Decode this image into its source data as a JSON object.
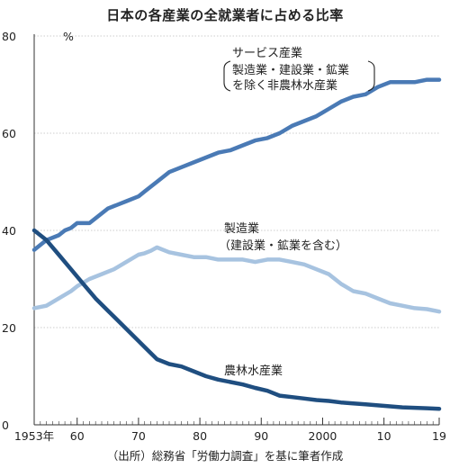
{
  "chart_data": {
    "type": "line",
    "title": "日本の各産業の全就業者に占める比率",
    "source": "（出所）総務省「労働力調査」を基に筆者作成",
    "ylabel": "%",
    "ylim": [
      0,
      80
    ],
    "xlim": [
      1953,
      2019
    ],
    "yticks": [
      "0",
      "20",
      "40",
      "60",
      "80"
    ],
    "yticks_values": [
      0,
      20,
      40,
      60,
      80
    ],
    "xticks": [
      "1953年",
      "60",
      "70",
      "80",
      "90",
      "2000",
      "10",
      "19"
    ],
    "xticks_values": [
      1953,
      1960,
      1970,
      1980,
      1990,
      2000,
      2010,
      2019
    ],
    "grid": true,
    "series": [
      {
        "name": "サービス産業",
        "label_lines": [
          "サービス産業",
          "製造業・建設業・鉱業",
          "を除く非農林水産業"
        ],
        "color": "#4a7ab5",
        "x": [
          1953,
          1955,
          1957,
          1958,
          1959,
          1960,
          1962,
          1963,
          1965,
          1967,
          1968,
          1970,
          1971,
          1973,
          1975,
          1977,
          1979,
          1981,
          1983,
          1985,
          1987,
          1989,
          1991,
          1993,
          1995,
          1997,
          1999,
          2001,
          2003,
          2005,
          2007,
          2009,
          2011,
          2013,
          2015,
          2017,
          2019
        ],
        "values": [
          36,
          38,
          39,
          40,
          40.5,
          41.5,
          41.5,
          42.5,
          44.5,
          45.5,
          46,
          47,
          48,
          50,
          52,
          53,
          54,
          55,
          56,
          56.5,
          57.5,
          58.5,
          59,
          60,
          61.5,
          62.5,
          63.5,
          65,
          66.5,
          67.5,
          68,
          69.5,
          70.5,
          70.5,
          70.5,
          71,
          71
        ]
      },
      {
        "name": "製造業",
        "label_lines": [
          "製造業",
          "（建設業・鉱業を含む）"
        ],
        "color": "#a7c3e0",
        "x": [
          1953,
          1955,
          1957,
          1959,
          1960,
          1962,
          1964,
          1966,
          1968,
          1970,
          1971,
          1972,
          1973,
          1975,
          1977,
          1979,
          1981,
          1983,
          1985,
          1987,
          1989,
          1991,
          1993,
          1995,
          1997,
          1999,
          2001,
          2003,
          2005,
          2007,
          2009,
          2011,
          2013,
          2015,
          2017,
          2019
        ],
        "values": [
          24,
          24.5,
          26,
          27.5,
          28.5,
          30,
          31,
          32,
          33.5,
          35,
          35.3,
          35.8,
          36.5,
          35.5,
          35,
          34.5,
          34.5,
          34,
          34,
          34,
          33.5,
          34,
          34,
          33.5,
          33,
          32,
          31,
          29,
          27.5,
          27,
          26,
          25,
          24.5,
          24,
          23.8,
          23.3
        ]
      },
      {
        "name": "農林水産業",
        "label_lines": [
          "農林水産業"
        ],
        "color": "#1f4e80",
        "x": [
          1953,
          1955,
          1957,
          1959,
          1961,
          1963,
          1965,
          1967,
          1969,
          1971,
          1973,
          1975,
          1977,
          1979,
          1981,
          1983,
          1985,
          1987,
          1989,
          1991,
          1993,
          1995,
          1997,
          1999,
          2001,
          2003,
          2005,
          2007,
          2009,
          2011,
          2013,
          2015,
          2017,
          2019
        ],
        "values": [
          40,
          38,
          35,
          32,
          29,
          26,
          23.5,
          21,
          18.5,
          16,
          13.5,
          12.5,
          12,
          11,
          10,
          9.3,
          8.8,
          8.3,
          7.6,
          7,
          6,
          5.7,
          5.4,
          5.1,
          4.9,
          4.6,
          4.4,
          4.2,
          4,
          3.8,
          3.6,
          3.5,
          3.4,
          3.3
        ]
      }
    ]
  }
}
